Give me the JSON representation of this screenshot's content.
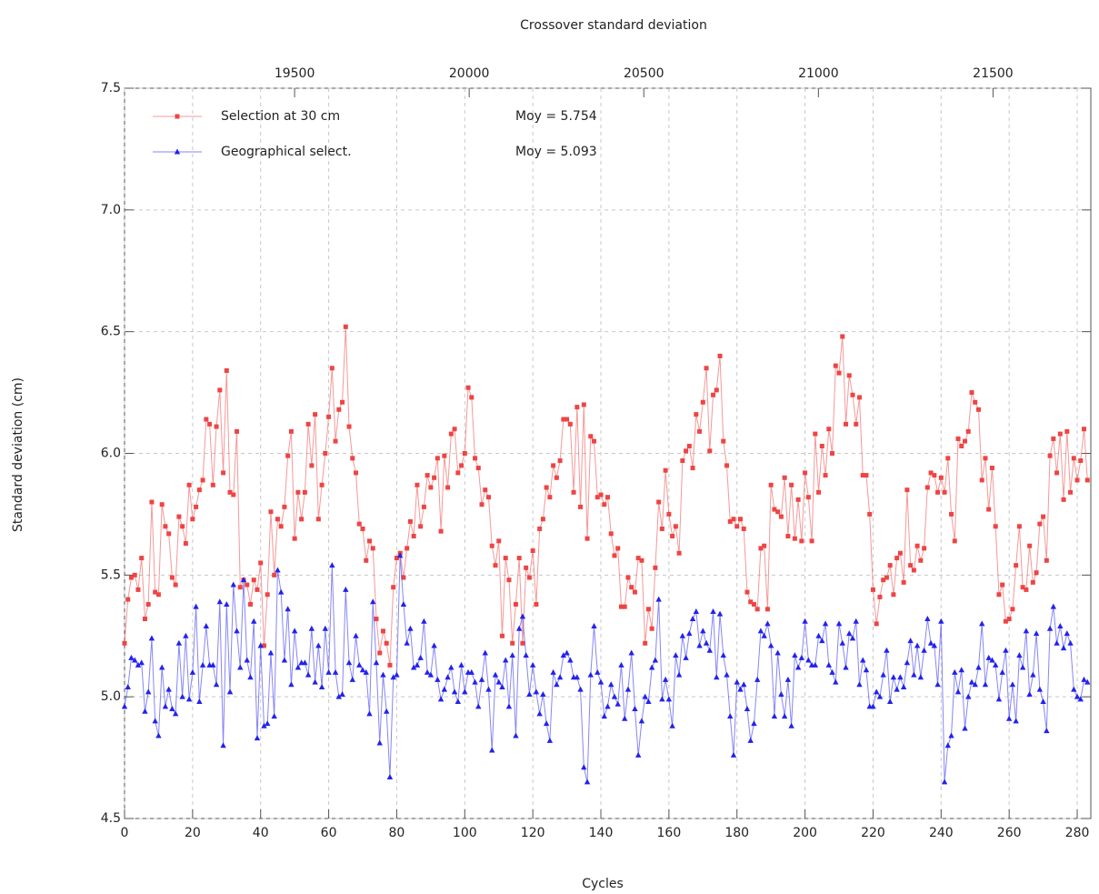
{
  "chart_data": {
    "type": "line",
    "title": "Crossover standard deviation",
    "xlabel": "Cycles",
    "ylabel": "Standard deviation (cm)",
    "annotations": [
      "Moy = 5.754",
      "Moy = 5.093"
    ],
    "xlim": [
      0,
      284
    ],
    "xticks": [
      0,
      20,
      40,
      60,
      80,
      100,
      120,
      140,
      160,
      180,
      200,
      220,
      240,
      260,
      280
    ],
    "x2lim": [
      19013,
      21780
    ],
    "x2ticks": [
      19500,
      20000,
      20500,
      21000,
      21500
    ],
    "ylim": [
      4.5,
      7.5
    ],
    "yticks": [
      4.5,
      {
        "value": 5,
        "label": "5.0"
      },
      5.5,
      {
        "value": 6,
        "label": "6.0"
      },
      6.5,
      {
        "value": 7,
        "label": "7.0"
      },
      7.5
    ],
    "grid": true,
    "legend": "upper left",
    "x": [
      0,
      1,
      2,
      3,
      4,
      5,
      6,
      7,
      8,
      9,
      10,
      11,
      12,
      13,
      14,
      15,
      16,
      17,
      18,
      19,
      20,
      21,
      22,
      23,
      24,
      25,
      26,
      27,
      28,
      29,
      30,
      31,
      32,
      33,
      34,
      35,
      36,
      37,
      38,
      39,
      40,
      41,
      42,
      43,
      44,
      45,
      46,
      47,
      48,
      49,
      50,
      51,
      52,
      53,
      54,
      55,
      56,
      57,
      58,
      59,
      60,
      61,
      62,
      63,
      64,
      65,
      66,
      67,
      68,
      69,
      70,
      71,
      72,
      73,
      74,
      75,
      76,
      77,
      78,
      79,
      80,
      81,
      82,
      83,
      84,
      85,
      86,
      87,
      88,
      89,
      90,
      91,
      92,
      93,
      94,
      95,
      96,
      97,
      98,
      99,
      100,
      101,
      102,
      103,
      104,
      105,
      106,
      107,
      108,
      109,
      110,
      111,
      112,
      113,
      114,
      115,
      116,
      117,
      118,
      119,
      120,
      121,
      122,
      123,
      124,
      125,
      126,
      127,
      128,
      129,
      130,
      131,
      132,
      133,
      134,
      135,
      136,
      137,
      138,
      139,
      140,
      141,
      142,
      143,
      144,
      145,
      146,
      147,
      148,
      149,
      150,
      151,
      152,
      153,
      154,
      155,
      156,
      157,
      158,
      159,
      160,
      161,
      162,
      163,
      164,
      165,
      166,
      167,
      168,
      169,
      170,
      171,
      172,
      173,
      174,
      175,
      176,
      177,
      178,
      179,
      180,
      181,
      182,
      183,
      184,
      185,
      186,
      187,
      188,
      189,
      190,
      191,
      192,
      193,
      194,
      195,
      196,
      197,
      198,
      199,
      200,
      201,
      202,
      203,
      204,
      205,
      206,
      207,
      208,
      209,
      210,
      211,
      212,
      213,
      214,
      215,
      216,
      217,
      218,
      219,
      220,
      221,
      222,
      223,
      224,
      225,
      226,
      227,
      228,
      229,
      230,
      231,
      232,
      233,
      234,
      235,
      236,
      237,
      238,
      239,
      240,
      241,
      242,
      243,
      244,
      245,
      246,
      247,
      248,
      249,
      250,
      251,
      252,
      253,
      254,
      255,
      256,
      257,
      258,
      259,
      260,
      261,
      262,
      263,
      264,
      265,
      266,
      267,
      268,
      269,
      270,
      271,
      272,
      273,
      274,
      275,
      276,
      277,
      278,
      279,
      280,
      281,
      282,
      283
    ],
    "series": [
      {
        "name": "Selection at 30 cm",
        "color": "#ee4444",
        "marker": "square",
        "values": [
          5.22,
          5.4,
          5.49,
          5.5,
          5.44,
          5.57,
          5.32,
          5.38,
          5.8,
          5.43,
          5.42,
          5.79,
          5.7,
          5.67,
          5.49,
          5.46,
          5.74,
          5.7,
          5.63,
          5.87,
          5.73,
          5.78,
          5.85,
          5.89,
          6.14,
          6.12,
          5.87,
          6.11,
          6.26,
          5.92,
          6.34,
          5.84,
          5.83,
          6.09,
          5.45,
          5.48,
          5.46,
          5.38,
          5.48,
          5.44,
          5.55,
          5.21,
          5.42,
          5.76,
          5.5,
          5.73,
          5.7,
          5.78,
          5.99,
          6.09,
          5.65,
          5.84,
          5.73,
          5.84,
          6.12,
          5.95,
          6.16,
          5.73,
          5.87,
          6.0,
          6.15,
          6.35,
          6.05,
          6.18,
          6.21,
          6.52,
          6.11,
          5.98,
          5.92,
          5.71,
          5.69,
          5.56,
          5.64,
          5.61,
          5.32,
          5.18,
          5.27,
          5.22,
          5.13,
          5.45,
          5.57,
          5.59,
          5.49,
          5.61,
          5.72,
          5.66,
          5.87,
          5.7,
          5.78,
          5.91,
          5.86,
          5.9,
          5.98,
          5.68,
          5.99,
          5.86,
          6.08,
          6.1,
          5.92,
          5.95,
          6.0,
          6.27,
          6.23,
          5.98,
          5.94,
          5.79,
          5.85,
          5.82,
          5.62,
          5.54,
          5.64,
          5.25,
          5.57,
          5.48,
          5.22,
          5.38,
          5.57,
          5.22,
          5.53,
          5.49,
          5.6,
          5.38,
          5.69,
          5.73,
          5.86,
          5.82,
          5.95,
          5.9,
          5.97,
          6.14,
          6.14,
          6.12,
          5.84,
          6.19,
          5.78,
          6.2,
          5.65,
          6.07,
          6.05,
          5.82,
          5.83,
          5.79,
          5.82,
          5.67,
          5.58,
          5.61,
          5.37,
          5.37,
          5.49,
          5.45,
          5.43,
          5.57,
          5.56,
          5.22,
          5.36,
          5.28,
          5.53,
          5.8,
          5.69,
          5.93,
          5.75,
          5.66,
          5.7,
          5.59,
          5.97,
          6.01,
          6.03,
          5.94,
          6.16,
          6.09,
          6.21,
          6.35,
          6.01,
          6.24,
          6.26,
          6.4,
          6.05,
          5.95,
          5.72,
          5.73,
          5.7,
          5.73,
          5.69,
          5.43,
          5.39,
          5.38,
          5.36,
          5.61,
          5.62,
          5.36,
          5.87,
          5.77,
          5.76,
          5.74,
          5.9,
          5.66,
          5.87,
          5.65,
          5.81,
          5.64,
          5.92,
          5.82,
          5.64,
          6.08,
          5.84,
          6.03,
          5.91,
          6.1,
          6.0,
          6.36,
          6.33,
          6.48,
          6.12,
          6.32,
          6.24,
          6.12,
          6.23,
          5.91,
          5.91,
          5.75,
          5.44,
          5.3,
          5.41,
          5.48,
          5.49,
          5.54,
          5.42,
          5.57,
          5.59,
          5.47,
          5.85,
          5.54,
          5.52,
          5.62,
          5.56,
          5.61,
          5.86,
          5.92,
          5.91,
          5.84,
          5.9,
          5.84,
          5.98,
          5.75,
          5.64,
          6.06,
          6.03,
          6.05,
          6.09,
          6.25,
          6.21,
          6.18,
          5.89,
          5.98,
          5.77,
          5.94,
          5.7,
          5.42,
          5.46,
          5.31,
          5.32,
          5.36,
          5.54,
          5.7,
          5.45,
          5.44,
          5.62,
          5.47,
          5.51,
          5.71,
          5.74,
          5.56,
          5.99,
          6.06,
          5.92,
          6.08,
          5.81,
          6.09,
          5.84,
          5.98,
          5.89,
          5.97,
          6.1,
          5.89
        ]
      },
      {
        "name": "Geographical select.",
        "color": "#2222ee",
        "marker": "triangle",
        "values": [
          4.96,
          5.04,
          5.16,
          5.15,
          5.13,
          5.14,
          4.94,
          5.02,
          5.24,
          4.9,
          4.84,
          5.12,
          4.96,
          5.03,
          4.95,
          4.93,
          5.22,
          5.0,
          5.25,
          4.99,
          5.1,
          5.37,
          4.98,
          5.13,
          5.29,
          5.13,
          5.13,
          5.05,
          5.39,
          4.8,
          5.38,
          5.02,
          5.46,
          5.27,
          5.12,
          5.48,
          5.15,
          5.08,
          5.31,
          4.83,
          5.21,
          4.88,
          4.89,
          5.18,
          4.92,
          5.52,
          5.43,
          5.15,
          5.36,
          5.05,
          5.27,
          5.12,
          5.14,
          5.14,
          5.09,
          5.28,
          5.06,
          5.21,
          5.04,
          5.28,
          5.1,
          5.54,
          5.1,
          5.0,
          5.01,
          5.44,
          5.14,
          5.07,
          5.25,
          5.13,
          5.11,
          5.1,
          4.93,
          5.39,
          5.14,
          4.81,
          5.09,
          4.94,
          4.67,
          5.08,
          5.09,
          5.58,
          5.38,
          5.22,
          5.28,
          5.12,
          5.13,
          5.16,
          5.31,
          5.1,
          5.09,
          5.21,
          5.07,
          4.99,
          5.03,
          5.08,
          5.12,
          5.02,
          4.98,
          5.13,
          5.02,
          5.1,
          5.1,
          5.06,
          4.96,
          5.07,
          5.18,
          5.03,
          4.78,
          5.09,
          5.06,
          5.04,
          5.15,
          4.96,
          5.17,
          4.84,
          5.28,
          5.33,
          5.17,
          5.01,
          5.13,
          5.02,
          4.93,
          5.01,
          4.89,
          4.82,
          5.1,
          5.05,
          5.08,
          5.17,
          5.18,
          5.15,
          5.08,
          5.08,
          5.03,
          4.71,
          4.65,
          5.09,
          5.29,
          5.1,
          5.06,
          4.92,
          4.96,
          5.05,
          5.0,
          4.97,
          5.13,
          4.91,
          5.03,
          5.18,
          4.95,
          4.76,
          4.9,
          5.0,
          4.98,
          5.12,
          5.15,
          5.4,
          4.99,
          5.07,
          4.99,
          4.88,
          5.17,
          5.09,
          5.25,
          5.16,
          5.26,
          5.32,
          5.35,
          5.21,
          5.27,
          5.22,
          5.19,
          5.35,
          5.08,
          5.34,
          5.17,
          5.09,
          4.92,
          4.76,
          5.06,
          5.03,
          5.05,
          4.95,
          4.82,
          4.89,
          5.07,
          5.27,
          5.25,
          5.3,
          5.21,
          4.92,
          5.18,
          5.01,
          4.92,
          5.07,
          4.88,
          5.17,
          5.12,
          5.16,
          5.31,
          5.15,
          5.13,
          5.13,
          5.25,
          5.23,
          5.3,
          5.13,
          5.1,
          5.06,
          5.3,
          5.22,
          5.12,
          5.26,
          5.24,
          5.31,
          5.05,
          5.15,
          5.11,
          4.96,
          4.96,
          5.02,
          5.0,
          5.09,
          5.19,
          4.98,
          5.08,
          5.03,
          5.08,
          5.04,
          5.14,
          5.23,
          5.09,
          5.21,
          5.08,
          5.19,
          5.32,
          5.22,
          5.21,
          5.05,
          5.31,
          4.65,
          4.8,
          4.84,
          5.1,
          5.02,
          5.11,
          4.87,
          5.0,
          5.06,
          5.05,
          5.12,
          5.3,
          5.05,
          5.16,
          5.15,
          5.13,
          4.99,
          5.1,
          5.19,
          4.91,
          5.05,
          4.9,
          5.17,
          5.12,
          5.27,
          5.01,
          5.09,
          5.26,
          5.03,
          4.98,
          4.86,
          5.28,
          5.37,
          5.22,
          5.29,
          5.2,
          5.26,
          5.22,
          5.03,
          5.0,
          4.99,
          5.07,
          5.06
        ]
      }
    ]
  }
}
